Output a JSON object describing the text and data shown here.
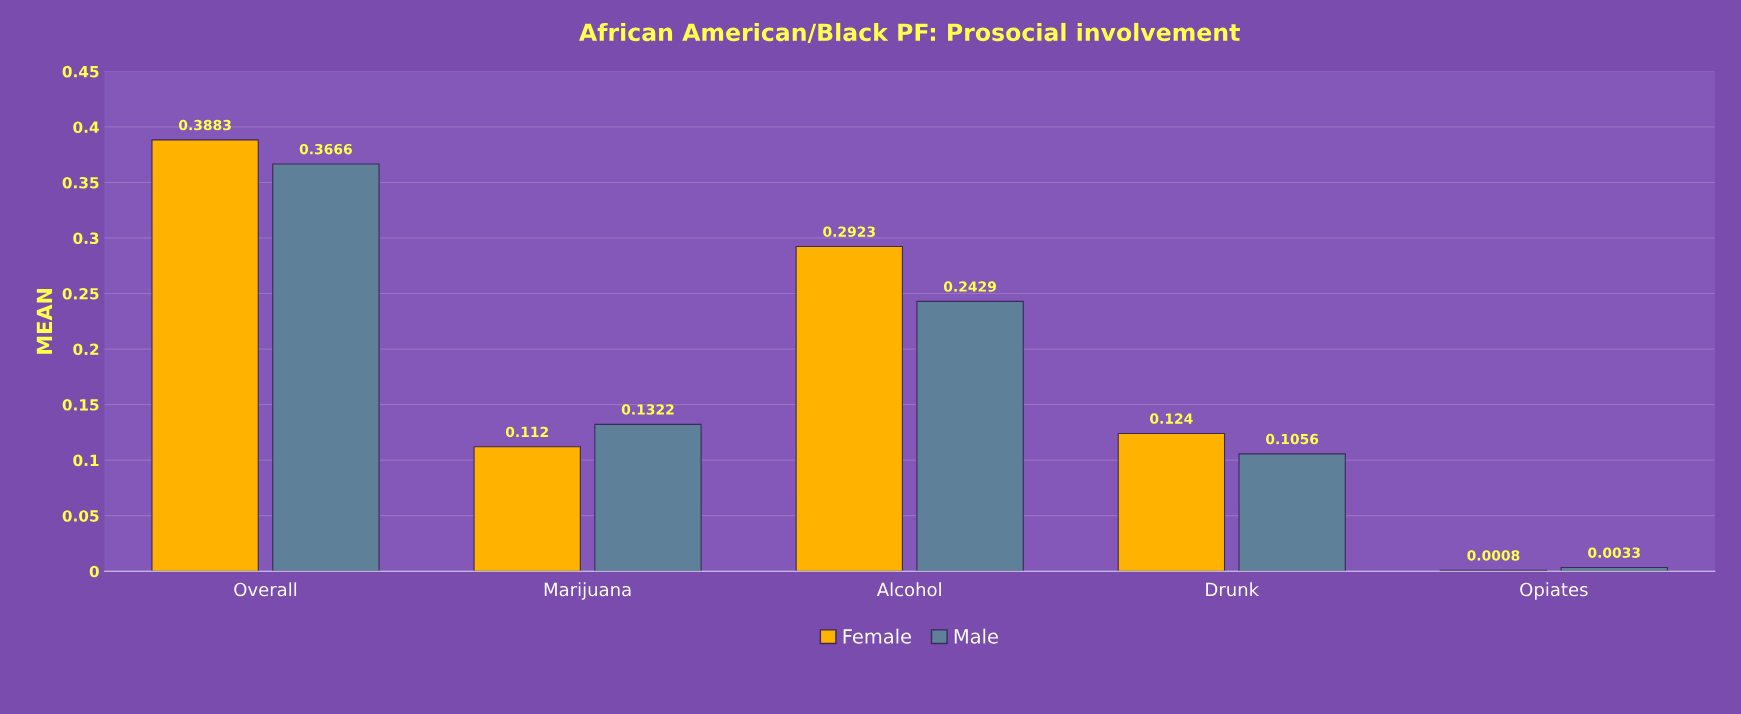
{
  "chart_data": {
    "type": "bar",
    "title": "African American/Black PF: Prosocial involvement",
    "ylabel": "MEAN",
    "categories": [
      "Overall",
      "Marijuana",
      "Alcohol",
      "Drunk",
      "Opiates"
    ],
    "series": [
      {
        "name": "Female",
        "color": "#ffb300",
        "values": [
          0.3883,
          0.112,
          0.2923,
          0.124,
          0.0008
        ]
      },
      {
        "name": "Male",
        "color": "#5f8099",
        "values": [
          0.3666,
          0.1322,
          0.2429,
          0.1056,
          0.0033
        ]
      }
    ],
    "ylim": [
      0,
      0.45
    ],
    "yticks": [
      {
        "value": 0,
        "label": "0"
      },
      0.05,
      0.1,
      0.15,
      0.2,
      0.25,
      0.3,
      0.35,
      0.4,
      0.45
    ],
    "grid": "y",
    "legend": "bottom",
    "data_labels": true
  }
}
